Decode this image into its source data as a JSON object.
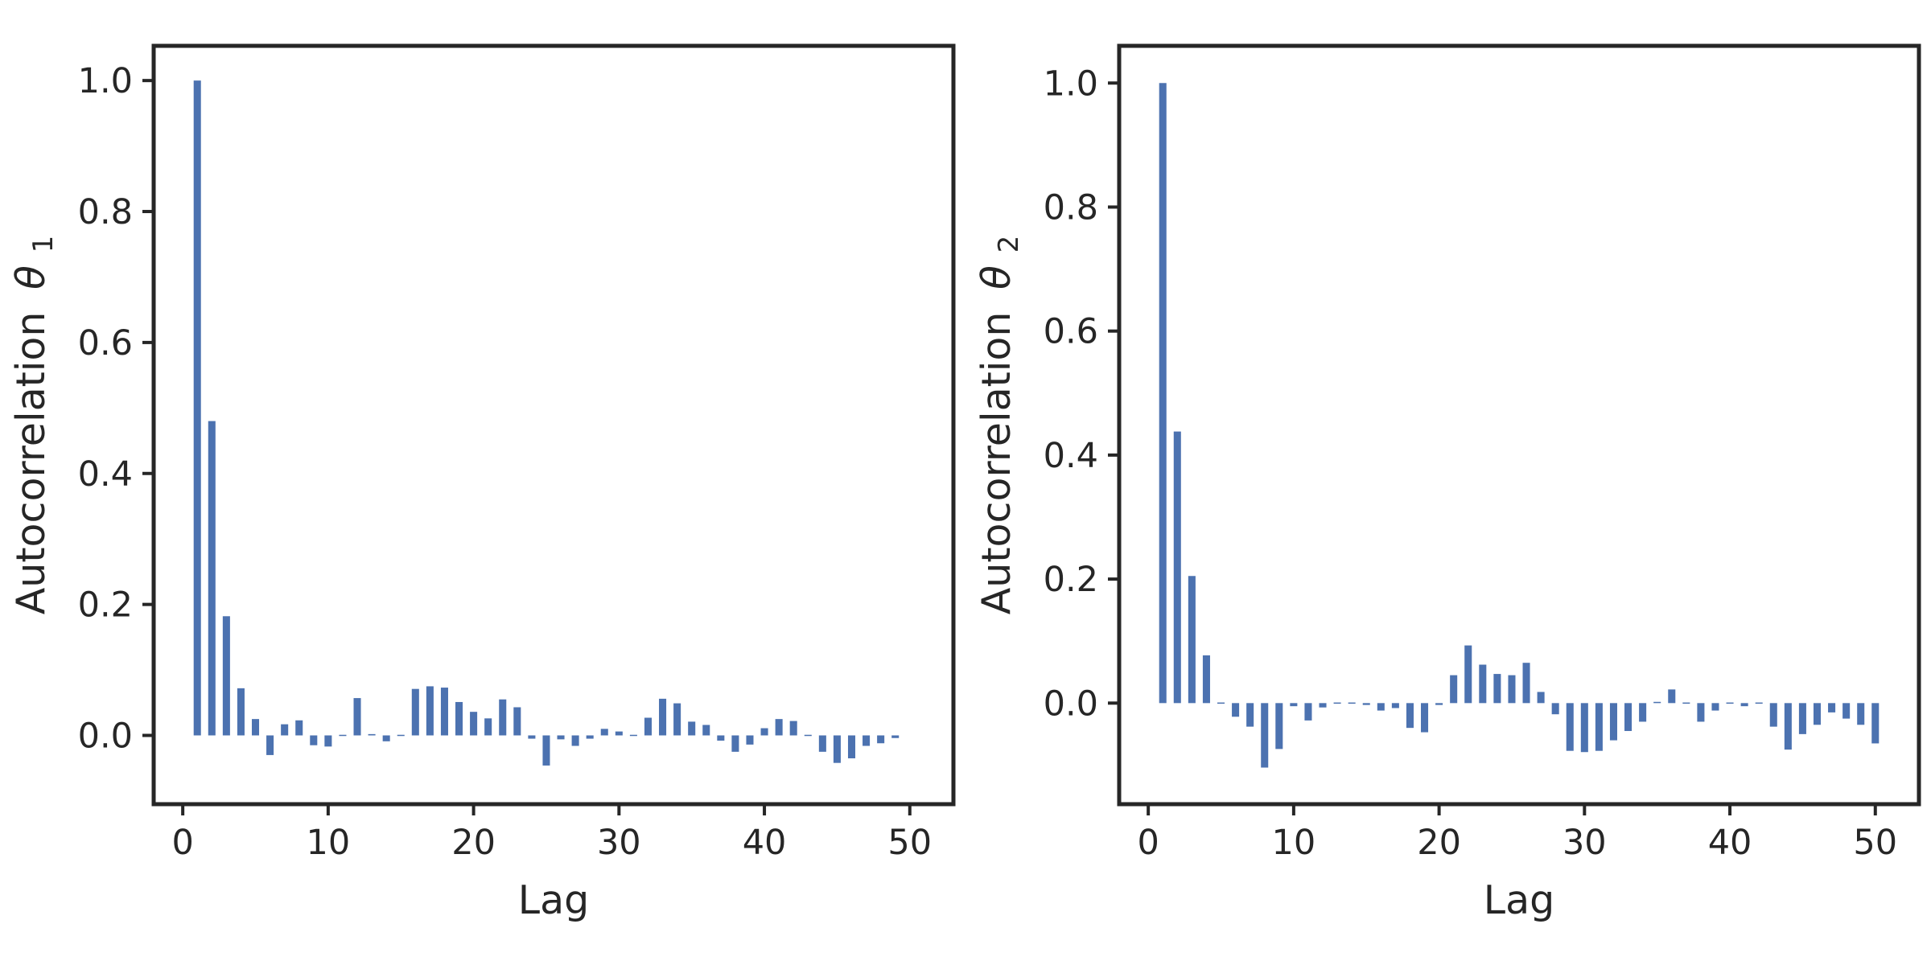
{
  "colors": {
    "bar": "#4c72b0",
    "axes": "#262626",
    "background": "#ffffff"
  },
  "chart_data": [
    {
      "type": "bar",
      "xlabel": "Lag",
      "ylabel": "Autocorrelation",
      "ylabel_symbol": "θ",
      "ylabel_subscript": "1",
      "xlim": [
        -2,
        53
      ],
      "ylim": [
        -0.105,
        1.053
      ],
      "xticks": [
        0,
        10,
        20,
        30,
        40,
        50
      ],
      "xtick_labels": [
        "0",
        "10",
        "20",
        "30",
        "40",
        "50"
      ],
      "yticks": [
        0.0,
        0.2,
        0.4,
        0.6,
        0.8,
        1.0
      ],
      "ytick_labels": [
        "0.0",
        "0.2",
        "0.4",
        "0.6",
        "0.8",
        "1.0"
      ],
      "x": [
        1,
        2,
        3,
        4,
        5,
        6,
        7,
        8,
        9,
        10,
        11,
        12,
        13,
        14,
        15,
        16,
        17,
        18,
        19,
        20,
        21,
        22,
        23,
        24,
        25,
        26,
        27,
        28,
        29,
        30,
        31,
        32,
        33,
        34,
        35,
        36,
        37,
        38,
        39,
        40,
        41,
        42,
        43,
        44,
        45,
        46,
        47,
        48,
        49
      ],
      "values": [
        1.0,
        0.48,
        0.182,
        0.072,
        0.025,
        -0.03,
        0.017,
        0.023,
        -0.015,
        -0.017,
        0.0,
        0.057,
        0.002,
        -0.009,
        0.0,
        0.071,
        0.075,
        0.073,
        0.051,
        0.036,
        0.026,
        0.055,
        0.043,
        -0.005,
        -0.046,
        -0.006,
        -0.016,
        -0.005,
        0.01,
        0.006,
        0.0,
        0.027,
        0.056,
        0.049,
        0.021,
        0.016,
        -0.008,
        -0.025,
        -0.014,
        0.011,
        0.025,
        0.022,
        0.0,
        -0.025,
        -0.042,
        -0.035,
        -0.016,
        -0.012,
        -0.004
      ]
    },
    {
      "type": "bar",
      "xlabel": "Lag",
      "ylabel": "Autocorrelation",
      "ylabel_symbol": "θ",
      "ylabel_subscript": "2",
      "xlim": [
        -2,
        53
      ],
      "ylim": [
        -0.163,
        1.06
      ],
      "xticks": [
        0,
        10,
        20,
        30,
        40,
        50
      ],
      "xtick_labels": [
        "0",
        "10",
        "20",
        "30",
        "40",
        "50"
      ],
      "yticks": [
        0.0,
        0.2,
        0.4,
        0.6,
        0.8,
        1.0
      ],
      "ytick_labels": [
        "0.0",
        "0.2",
        "0.4",
        "0.6",
        "0.8",
        "1.0"
      ],
      "x": [
        1,
        2,
        3,
        4,
        5,
        6,
        7,
        8,
        9,
        10,
        11,
        12,
        13,
        14,
        15,
        16,
        17,
        18,
        19,
        20,
        21,
        22,
        23,
        24,
        25,
        26,
        27,
        28,
        29,
        30,
        31,
        32,
        33,
        34,
        35,
        36,
        37,
        38,
        39,
        40,
        41,
        42,
        43,
        44,
        45,
        46,
        47,
        48,
        49,
        50
      ],
      "values": [
        1.0,
        0.438,
        0.205,
        0.077,
        0.0,
        -0.022,
        -0.038,
        -0.104,
        -0.074,
        -0.005,
        -0.028,
        -0.007,
        0.0,
        0.0,
        -0.003,
        -0.012,
        -0.008,
        -0.04,
        -0.047,
        -0.003,
        0.045,
        0.093,
        0.062,
        0.047,
        0.045,
        0.065,
        0.018,
        -0.018,
        -0.077,
        -0.079,
        -0.077,
        -0.06,
        -0.045,
        -0.03,
        0.002,
        0.022,
        0.0,
        -0.03,
        -0.012,
        0.0,
        -0.005,
        0.0,
        -0.038,
        -0.075,
        -0.05,
        -0.035,
        -0.015,
        -0.025,
        -0.035,
        -0.065
      ]
    }
  ]
}
